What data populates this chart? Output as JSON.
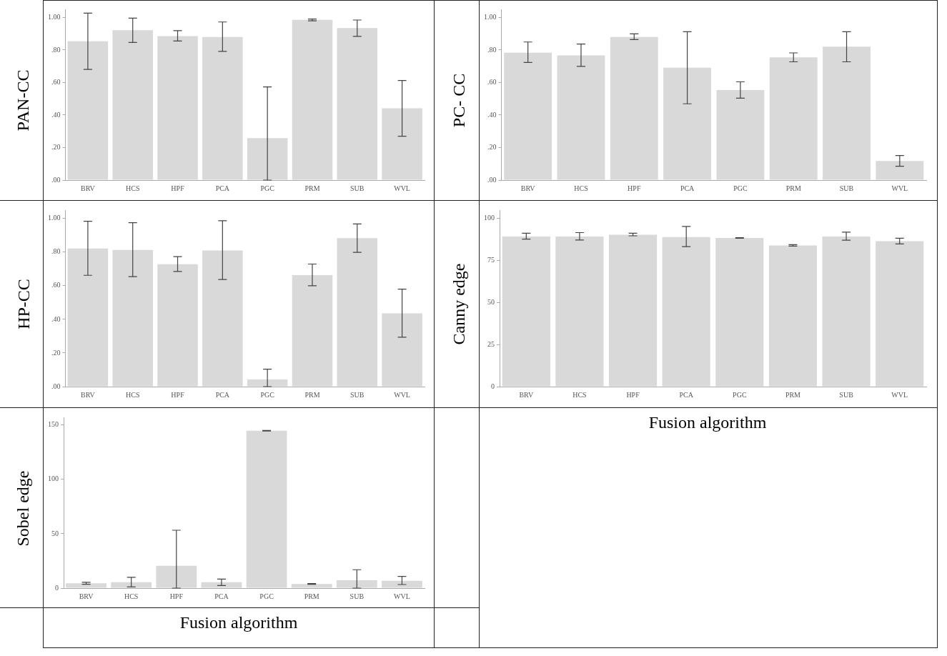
{
  "chart_data": [
    {
      "type": "bar",
      "ylabel": "PAN-CC",
      "categories": [
        "BRV",
        "HCS",
        "HPF",
        "PCA",
        "PGC",
        "PRM",
        "SUB",
        "WVL"
      ],
      "color": "#d9d9d9",
      "values": [
        0.853,
        0.921,
        0.885,
        0.88,
        0.258,
        0.985,
        0.935,
        0.441
      ],
      "errors": [
        [
          0.68,
          1.026
        ],
        [
          0.846,
          0.996
        ],
        [
          0.855,
          0.919
        ],
        [
          0.791,
          0.972
        ],
        [
          0,
          0.573
        ],
        [
          0.979,
          0.99
        ],
        [
          0.884,
          0.984
        ],
        [
          0.27,
          0.612
        ]
      ],
      "ylim": [
        0,
        1.05
      ],
      "yticks": [
        {
          "value": 0,
          "label": ".00"
        },
        {
          "value": 0.2,
          "label": ".20"
        },
        {
          "value": 0.4,
          "label": ".40"
        },
        {
          "value": 0.6,
          "label": ".60"
        },
        {
          "value": 0.8,
          "label": ".80"
        },
        {
          "value": 1,
          "label": "1.00"
        }
      ],
      "grid": false,
      "legend": false
    },
    {
      "type": "bar",
      "ylabel": "PC- CC",
      "categories": [
        "BRV",
        "HCS",
        "HPF",
        "PCA",
        "PGC",
        "PRM",
        "SUB",
        "WVL"
      ],
      "color": "#d9d9d9",
      "values": [
        0.783,
        0.767,
        0.88,
        0.691,
        0.554,
        0.755,
        0.82,
        0.117
      ],
      "errors": [
        [
          0.723,
          0.849
        ],
        [
          0.699,
          0.836
        ],
        [
          0.864,
          0.899
        ],
        [
          0.469,
          0.912
        ],
        [
          0.504,
          0.604
        ],
        [
          0.727,
          0.782
        ],
        [
          0.727,
          0.912
        ],
        [
          0.085,
          0.151
        ]
      ],
      "ylim": [
        0,
        1.05
      ],
      "yticks": [
        {
          "value": 0,
          "label": ".00"
        },
        {
          "value": 0.2,
          "label": ".20"
        },
        {
          "value": 0.4,
          "label": ".40"
        },
        {
          "value": 0.6,
          "label": ".60"
        },
        {
          "value": 0.8,
          "label": ".80"
        },
        {
          "value": 1,
          "label": "1.00"
        }
      ],
      "grid": false,
      "legend": false
    },
    {
      "type": "bar",
      "ylabel": "HP-CC",
      "categories": [
        "BRV",
        "HCS",
        "HPF",
        "PCA",
        "PGC",
        "PRM",
        "SUB",
        "WVL"
      ],
      "color": "#d9d9d9",
      "values": [
        0.821,
        0.813,
        0.728,
        0.81,
        0.042,
        0.663,
        0.883,
        0.436
      ],
      "errors": [
        [
          0.662,
          0.984
        ],
        [
          0.654,
          0.975
        ],
        [
          0.685,
          0.773
        ],
        [
          0.637,
          0.987
        ],
        [
          0,
          0.104
        ],
        [
          0.6,
          0.729
        ],
        [
          0.799,
          0.968
        ],
        [
          0.294,
          0.58
        ]
      ],
      "ylim": [
        0,
        1.05
      ],
      "yticks": [
        {
          "value": 0,
          "label": ".00"
        },
        {
          "value": 0.2,
          "label": ".20"
        },
        {
          "value": 0.4,
          "label": ".40"
        },
        {
          "value": 0.6,
          "label": ".60"
        },
        {
          "value": 0.8,
          "label": ".80"
        },
        {
          "value": 1,
          "label": "1.00"
        }
      ],
      "grid": false,
      "legend": false
    },
    {
      "type": "bar",
      "ylabel": "Canny edge",
      "xlabel": "Fusion algorithm",
      "categories": [
        "BRV",
        "HCS",
        "HPF",
        "PCA",
        "PGC",
        "PRM",
        "SUB",
        "WVL"
      ],
      "color": "#d9d9d9",
      "values": [
        89.3,
        89.3,
        90.3,
        89.0,
        88.4,
        84.0,
        89.3,
        86.5
      ],
      "errors": [
        [
          87.7,
          91.2
        ],
        [
          87.2,
          91.6
        ],
        [
          89.7,
          91.2
        ],
        [
          83.3,
          95.3
        ],
        0.2,
        [
          83.6,
          84.4
        ],
        [
          87.1,
          91.9
        ],
        [
          84.9,
          88.3
        ]
      ],
      "ylim": [
        0,
        105
      ],
      "yticks": [
        0,
        25,
        50,
        75,
        100
      ],
      "grid": false,
      "legend": false
    },
    {
      "type": "bar",
      "ylabel": "Sobel edge",
      "xlabel": "Fusion algorithm",
      "categories": [
        "BRV",
        "HCS",
        "HPF",
        "PCA",
        "PGC",
        "PRM",
        "SUB",
        "WVL"
      ],
      "color": "#d9d9d9",
      "values": [
        4.4,
        5.5,
        20.6,
        5.5,
        144.7,
        3.7,
        7.2,
        6.8
      ],
      "errors": [
        [
          3.5,
          5.3
        ],
        [
          1.1,
          9.9
        ],
        [
          0,
          53.2
        ],
        [
          2.4,
          8.3
        ],
        0.3,
        [
          3.5,
          4.2
        ],
        [
          0,
          16.9
        ],
        [
          3.3,
          10.7
        ]
      ],
      "ylim": [
        0,
        157
      ],
      "yticks": [
        0,
        50,
        100,
        150
      ],
      "grid": false,
      "legend": false
    }
  ]
}
